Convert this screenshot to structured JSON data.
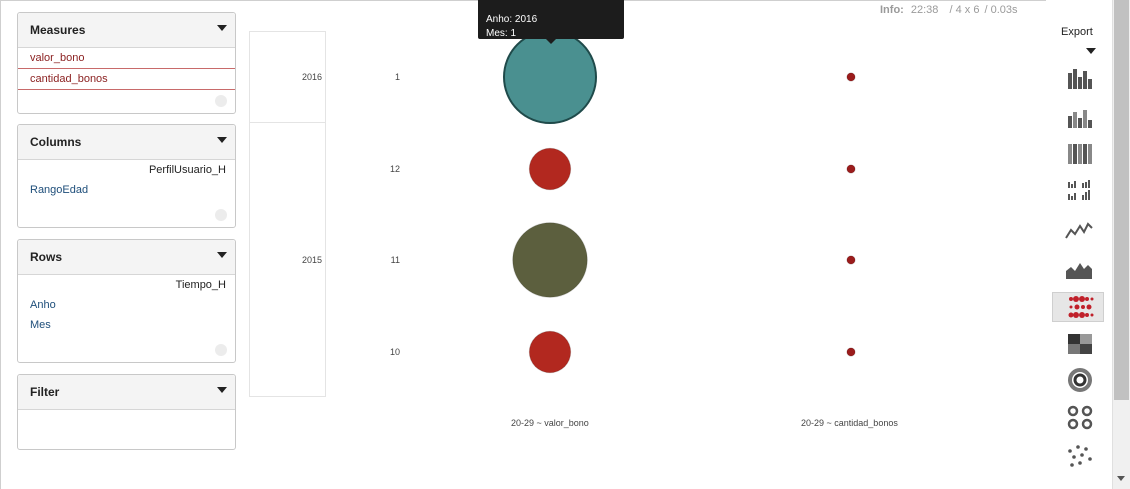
{
  "panels": {
    "measures": {
      "title": "Measures",
      "items": [
        "valor_bono",
        "cantidad_bonos"
      ]
    },
    "columns": {
      "title": "Columns",
      "hierarchy": "PerfilUsuario_H",
      "items": [
        "RangoEdad"
      ]
    },
    "rows": {
      "title": "Rows",
      "hierarchy": "Tiempo_H",
      "items": [
        "Anho",
        "Mes"
      ]
    },
    "filter": {
      "title": "Filter"
    }
  },
  "info": {
    "label": "Info:",
    "time": "22:38",
    "dims": "/ 4 x 6",
    "duration": "/ 0.03s"
  },
  "tooltip": {
    "line1": "Anho: 2016",
    "line2": "Mes: 1"
  },
  "chart_data": {
    "type": "scatter",
    "row_years": [
      "2016",
      "2015"
    ],
    "row_months": [
      "1",
      "12",
      "11",
      "10"
    ],
    "columns": [
      "20-29 ~ valor_bono",
      "20-29 ~ cantidad_bonos"
    ],
    "points": [
      {
        "year": "2016",
        "month": "1",
        "column": "20-29 ~ valor_bono",
        "relative_size": 1.0,
        "color": "#4a9090"
      },
      {
        "year": "2015",
        "month": "12",
        "column": "20-29 ~ valor_bono",
        "relative_size": 0.45,
        "color": "#b2281f"
      },
      {
        "year": "2015",
        "month": "11",
        "column": "20-29 ~ valor_bono",
        "relative_size": 0.81,
        "color": "#5c5f3e"
      },
      {
        "year": "2015",
        "month": "10",
        "column": "20-29 ~ valor_bono",
        "relative_size": 0.45,
        "color": "#b2281f"
      },
      {
        "year": "2016",
        "month": "1",
        "column": "20-29 ~ cantidad_bonos",
        "relative_size": 0.09,
        "color": "#9b1c1c"
      },
      {
        "year": "2015",
        "month": "12",
        "column": "20-29 ~ cantidad_bonos",
        "relative_size": 0.09,
        "color": "#9b1c1c"
      },
      {
        "year": "2015",
        "month": "11",
        "column": "20-29 ~ cantidad_bonos",
        "relative_size": 0.09,
        "color": "#9b1c1c"
      },
      {
        "year": "2015",
        "month": "10",
        "column": "20-29 ~ cantidad_bonos",
        "relative_size": 0.09,
        "color": "#9b1c1c"
      }
    ]
  },
  "toolbar": {
    "export_label": "Export",
    "icons": [
      "bar-chart-icon",
      "stacked-bar-icon",
      "stacked-100-bar-icon",
      "multiple-bar-icon",
      "line-chart-icon",
      "area-chart-icon",
      "dot-chart-icon",
      "heatgrid-icon",
      "sunburst-icon",
      "multi-sunburst-icon",
      "scatter-icon"
    ],
    "selected": "dot-chart-icon"
  }
}
